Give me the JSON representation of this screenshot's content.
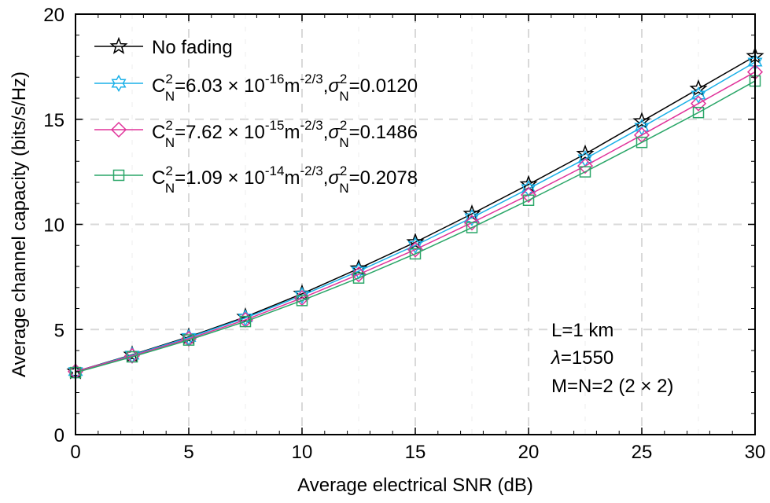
{
  "chart_data": {
    "type": "line",
    "xlabel": "Average electrical SNR (dB)",
    "ylabel": "Average channel capacity (bits/s/Hz)",
    "xlim": [
      0,
      30
    ],
    "ylim": [
      0,
      20
    ],
    "xticks": [
      0,
      5,
      10,
      15,
      20,
      25,
      30
    ],
    "yticks": [
      0,
      5,
      10,
      15,
      20
    ],
    "x_tick_labels": [
      "0",
      "5",
      "10",
      "15",
      "20",
      "25",
      "30"
    ],
    "y_tick_labels": [
      "0",
      "5",
      "10",
      "15",
      "20"
    ],
    "grid": true,
    "legend_position": "top-left",
    "x": [
      0,
      2.5,
      5,
      7.5,
      10,
      12.5,
      15,
      17.5,
      20,
      22.5,
      25,
      27.5,
      30
    ],
    "series": [
      {
        "name": "No fading",
        "color": "#000000",
        "marker": "star",
        "legend": {
          "base": "No fading"
        },
        "values": [
          3.0,
          3.8,
          4.65,
          5.6,
          6.7,
          7.9,
          9.15,
          10.5,
          11.9,
          13.35,
          14.9,
          16.45,
          18.0
        ]
      },
      {
        "name": "C_N^2=6.03 × 10^-16 m^-2/3, σ_N^2=0.0120",
        "color": "#1ab0e8",
        "marker": "hexagram",
        "legend": {
          "c": "C",
          "c_sup": "2",
          "c_sub": "N",
          "mid": "=6.03 × 10",
          "exp": "-16",
          "m": "m",
          "m_exp": "-2/3",
          "comma": ",",
          "sigma": "σ",
          "s_sup": "2",
          "s_sub": "N",
          "end": "=0.0120"
        },
        "values": [
          3.0,
          3.78,
          4.62,
          5.55,
          6.62,
          7.78,
          9.0,
          10.32,
          11.7,
          13.12,
          14.62,
          16.15,
          17.72
        ]
      },
      {
        "name": "C_N^2=7.62 × 10^-15 m^-2/3, σ_N^2=0.1486",
        "color": "#e0339a",
        "marker": "diamond",
        "legend": {
          "c": "C",
          "c_sup": "2",
          "c_sub": "N",
          "mid": "=7.62 × 10",
          "exp": "-15",
          "m": "m",
          "m_exp": "-2/3",
          "comma": ",",
          "sigma": "σ",
          "s_sup": "2",
          "s_sub": "N",
          "end": "=0.1486"
        },
        "values": [
          3.0,
          3.75,
          4.56,
          5.46,
          6.5,
          7.62,
          8.8,
          10.08,
          11.4,
          12.78,
          14.25,
          15.75,
          17.25
        ]
      },
      {
        "name": "C_N^2=1.09 × 10^-14 m^-2/3, σ_N^2=0.2078",
        "color": "#2aa668",
        "marker": "square",
        "legend": {
          "c": "C",
          "c_sup": "2",
          "c_sub": "N",
          "mid": "=1.09 × 10",
          "exp": "-14",
          "m": "m",
          "m_exp": "-2/3",
          "comma": ",",
          "sigma": "σ",
          "s_sup": "2",
          "s_sub": "N",
          "end": "=0.2078"
        },
        "values": [
          2.95,
          3.7,
          4.5,
          5.38,
          6.38,
          7.45,
          8.6,
          9.85,
          11.15,
          12.5,
          13.9,
          15.32,
          16.82
        ]
      }
    ],
    "annotations": {
      "line1": "L=1 km",
      "lambda_sym": "λ",
      "lambda_val": "=1550",
      "line3": "M=N=2 (2 × 2)"
    }
  }
}
